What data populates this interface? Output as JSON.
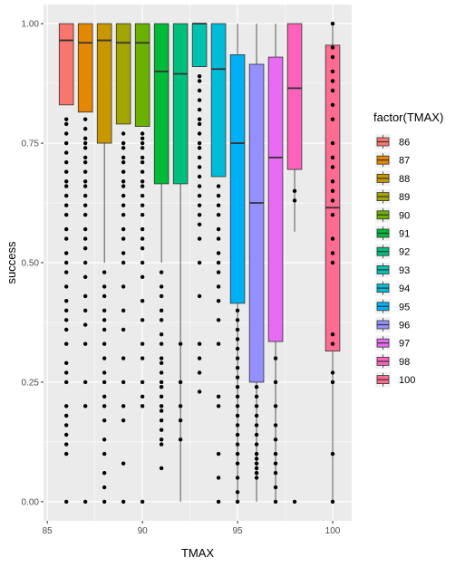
{
  "chart_data": {
    "type": "boxplot",
    "xlabel": "TMAX",
    "ylabel": "success",
    "xlim": [
      84.8,
      101.0
    ],
    "ylim": [
      -0.04,
      1.04
    ],
    "x_ticks": [
      85,
      90,
      95,
      100
    ],
    "y_ticks": [
      0.0,
      0.25,
      0.5,
      0.75,
      1.0
    ],
    "x_tick_labels": [
      "85",
      "90",
      "95",
      "100"
    ],
    "y_tick_labels": [
      "0.00",
      "0.25",
      "0.50",
      "0.75",
      "1.00"
    ],
    "grid": true,
    "legend": {
      "title": "factor(TMAX)",
      "position": "right",
      "entries": [
        "86",
        "87",
        "88",
        "89",
        "90",
        "91",
        "92",
        "93",
        "94",
        "95",
        "96",
        "97",
        "98",
        "100"
      ]
    },
    "boxes": [
      {
        "x": 86,
        "label": "86",
        "color": "#F8766D",
        "whisker_low": 0.83,
        "q1": 0.83,
        "median": 0.965,
        "q3": 1.0,
        "whisker_high": 1.0
      },
      {
        "x": 87,
        "label": "87",
        "color": "#E58700",
        "whisker_low": 0.815,
        "q1": 0.815,
        "median": 0.96,
        "q3": 1.0,
        "whisker_high": 1.0
      },
      {
        "x": 88,
        "label": "88",
        "color": "#C99800",
        "whisker_low": 0.5,
        "q1": 0.75,
        "median": 0.965,
        "q3": 1.0,
        "whisker_high": 1.0
      },
      {
        "x": 89,
        "label": "89",
        "color": "#A3A500",
        "whisker_low": 0.79,
        "q1": 0.79,
        "median": 0.96,
        "q3": 1.0,
        "whisker_high": 1.0
      },
      {
        "x": 90,
        "label": "90",
        "color": "#6BB100",
        "whisker_low": 0.785,
        "q1": 0.785,
        "median": 0.96,
        "q3": 1.0,
        "whisker_high": 1.0
      },
      {
        "x": 91,
        "label": "91",
        "color": "#00BA38",
        "whisker_low": 0.5,
        "q1": 0.665,
        "median": 0.9,
        "q3": 1.0,
        "whisker_high": 1.0
      },
      {
        "x": 92,
        "label": "92",
        "color": "#00BF7D",
        "whisker_low": 0.0,
        "q1": 0.665,
        "median": 0.895,
        "q3": 1.0,
        "whisker_high": 1.0
      },
      {
        "x": 93,
        "label": "93",
        "color": "#00C0AF",
        "whisker_low": 0.91,
        "q1": 0.91,
        "median": 1.0,
        "q3": 1.0,
        "whisker_high": 1.0
      },
      {
        "x": 94,
        "label": "94",
        "color": "#00BCD8",
        "whisker_low": 0.68,
        "q1": 0.68,
        "median": 0.905,
        "q3": 1.0,
        "whisker_high": 1.0
      },
      {
        "x": 95,
        "label": "95",
        "color": "#00B0F6",
        "whisker_low": 0.0,
        "q1": 0.415,
        "median": 0.75,
        "q3": 0.935,
        "whisker_high": 1.0
      },
      {
        "x": 96,
        "label": "96",
        "color": "#9590FF",
        "whisker_low": 0.0,
        "q1": 0.25,
        "median": 0.625,
        "q3": 0.915,
        "whisker_high": 1.0
      },
      {
        "x": 97,
        "label": "97",
        "color": "#E76BF3",
        "whisker_low": 0.0,
        "q1": 0.335,
        "median": 0.72,
        "q3": 0.93,
        "whisker_high": 1.0
      },
      {
        "x": 98,
        "label": "98",
        "color": "#FF62BC",
        "whisker_low": 0.565,
        "q1": 0.695,
        "median": 0.865,
        "q3": 1.0,
        "whisker_high": 1.0
      },
      {
        "x": 100,
        "label": "100",
        "color": "#FF6C91",
        "whisker_low": 0.0,
        "q1": 0.315,
        "median": 0.615,
        "q3": 0.955,
        "whisker_high": 1.0
      }
    ],
    "points": [
      {
        "x": 86,
        "y": [
          0.0,
          0.1,
          0.12,
          0.14,
          0.16,
          0.18,
          0.2,
          0.25,
          0.27,
          0.29,
          0.33,
          0.36,
          0.38,
          0.4,
          0.42,
          0.45,
          0.48,
          0.5,
          0.52,
          0.55,
          0.57,
          0.6,
          0.62,
          0.64,
          0.66,
          0.67,
          0.69,
          0.71,
          0.73,
          0.75,
          0.77,
          0.79,
          0.8
        ]
      },
      {
        "x": 87,
        "y": [
          0.0,
          0.2,
          0.25,
          0.33,
          0.37,
          0.4,
          0.43,
          0.47,
          0.5,
          0.53,
          0.55,
          0.57,
          0.6,
          0.62,
          0.64,
          0.66,
          0.67,
          0.69,
          0.71,
          0.72,
          0.74,
          0.75,
          0.76,
          0.78,
          0.8
        ]
      },
      {
        "x": 88,
        "y": [
          0.0,
          0.03,
          0.06,
          0.1,
          0.13,
          0.17,
          0.2,
          0.22,
          0.25,
          0.27,
          0.3,
          0.33,
          0.36,
          0.38,
          0.4,
          0.43,
          0.45,
          0.48
        ]
      },
      {
        "x": 89,
        "y": [
          0.0,
          0.08,
          0.17,
          0.2,
          0.25,
          0.3,
          0.36,
          0.4,
          0.45,
          0.5,
          0.52,
          0.55,
          0.57,
          0.6,
          0.62,
          0.64,
          0.66,
          0.67,
          0.69,
          0.71,
          0.72,
          0.74,
          0.75,
          0.77
        ]
      },
      {
        "x": 90,
        "y": [
          0.0,
          0.2,
          0.22,
          0.25,
          0.3,
          0.33,
          0.38,
          0.42,
          0.47,
          0.5,
          0.53,
          0.55,
          0.57,
          0.6,
          0.62,
          0.64,
          0.66,
          0.67,
          0.69,
          0.71,
          0.72,
          0.74,
          0.75,
          0.76,
          0.77
        ]
      },
      {
        "x": 91,
        "y": [
          0.07,
          0.12,
          0.13,
          0.15,
          0.17,
          0.19,
          0.2,
          0.22,
          0.24,
          0.25,
          0.27,
          0.29,
          0.3,
          0.33,
          0.35,
          0.38,
          0.4,
          0.43,
          0.45,
          0.48
        ]
      },
      {
        "x": 92,
        "y": [
          0.13,
          0.17,
          0.2,
          0.25,
          0.33
        ]
      },
      {
        "x": 93,
        "y": [
          0.23,
          0.27,
          0.3,
          0.33,
          0.43,
          0.5,
          0.55,
          0.58,
          0.6,
          0.62,
          0.64,
          0.66,
          0.68,
          0.7,
          0.72,
          0.74,
          0.75,
          0.77,
          0.79,
          0.8,
          0.82,
          0.84,
          0.86,
          0.88,
          0.89
        ]
      },
      {
        "x": 94,
        "y": [
          0.0,
          0.05,
          0.1,
          0.2,
          0.22,
          0.33,
          0.38,
          0.42,
          0.45,
          0.48,
          0.5,
          0.52,
          0.55,
          0.57,
          0.6,
          0.62,
          0.64,
          0.66
        ]
      },
      {
        "x": 95,
        "y": [
          0.0,
          0.02,
          0.05,
          0.08,
          0.1,
          0.12,
          0.14,
          0.16,
          0.18,
          0.2,
          0.22,
          0.24,
          0.26,
          0.28,
          0.3,
          0.32,
          0.34,
          0.36,
          0.38,
          0.4
        ]
      },
      {
        "x": 96,
        "y": [
          0.05,
          0.06,
          0.07,
          0.08,
          0.09,
          0.1,
          0.12,
          0.14,
          0.16,
          0.18,
          0.2,
          0.22,
          0.24
        ]
      },
      {
        "x": 97,
        "y": [
          0.0,
          0.03,
          0.06,
          0.08,
          0.1,
          0.13,
          0.16,
          0.2,
          0.25,
          0.3
        ]
      },
      {
        "x": 98,
        "y": [
          0.0,
          0.63,
          0.65
        ]
      },
      {
        "x": 100,
        "y": [
          0.0,
          0.1,
          0.25,
          0.27,
          0.33,
          0.35,
          0.5,
          0.52,
          0.55,
          0.6,
          0.63,
          0.65,
          0.67,
          0.7,
          0.72,
          0.75,
          0.8,
          0.83,
          0.86,
          0.88,
          0.9,
          0.93,
          0.95,
          1.0
        ]
      }
    ]
  }
}
